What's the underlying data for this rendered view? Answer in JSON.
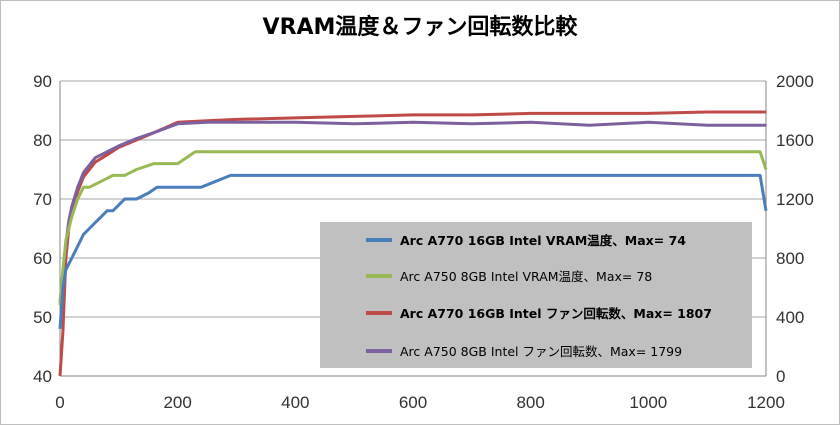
{
  "chart_data": {
    "type": "line",
    "title": "VRAM温度＆ファン回転数比較",
    "xlabel": "",
    "ylabel": "",
    "xlim": [
      0,
      1200
    ],
    "ylim_left": [
      40,
      90
    ],
    "ylim_right": [
      0,
      2000
    ],
    "x_ticks": [
      "0",
      "200",
      "400",
      "600",
      "800",
      "1000",
      "1200"
    ],
    "y_left_ticks": [
      "40",
      "50",
      "60",
      "70",
      "80",
      "90"
    ],
    "y_right_ticks": [
      "0",
      "400",
      "800",
      "1200",
      "1600",
      "2000"
    ],
    "grid": true,
    "legend_position": "bottom-right",
    "series": [
      {
        "name": "Arc A770 16GB Intel VRAM温度、Max= 74",
        "axis": "left",
        "color": "#4a7ebb",
        "bold": true,
        "x": [
          0,
          5,
          10,
          20,
          30,
          40,
          50,
          60,
          70,
          80,
          90,
          100,
          110,
          130,
          150,
          165,
          200,
          240,
          290,
          300,
          600,
          1000,
          1190,
          1200
        ],
        "y": [
          48,
          55,
          58,
          60,
          62,
          64,
          65,
          66,
          67,
          68,
          68,
          69,
          70,
          70,
          71,
          72,
          72,
          72,
          74,
          74,
          74,
          74,
          74,
          68
        ]
      },
      {
        "name": "Arc A750 8GB Intel VRAM温度、Max= 78",
        "axis": "left",
        "color": "#98b954",
        "bold": false,
        "x": [
          0,
          5,
          10,
          20,
          30,
          40,
          50,
          70,
          90,
          110,
          130,
          160,
          200,
          230,
          300,
          600,
          900,
          1190,
          1200
        ],
        "y": [
          52,
          58,
          63,
          67,
          70,
          72,
          72,
          73,
          74,
          74,
          75,
          76,
          76,
          78,
          78,
          78,
          78,
          78,
          75
        ]
      },
      {
        "name": "Arc A770 16GB Intel ファン回転数、Max= 1807",
        "axis": "right",
        "color": "#be4b48",
        "bold": true,
        "x": [
          0,
          5,
          10,
          15,
          20,
          30,
          40,
          60,
          80,
          100,
          130,
          160,
          200,
          250,
          300,
          400,
          500,
          600,
          700,
          800,
          900,
          1000,
          1100,
          1200
        ],
        "y": [
          0,
          300,
          800,
          1000,
          1100,
          1250,
          1350,
          1450,
          1500,
          1550,
          1600,
          1650,
          1720,
          1730,
          1740,
          1750,
          1760,
          1770,
          1770,
          1780,
          1780,
          1780,
          1790,
          1790
        ]
      },
      {
        "name": "Arc A750 8GB Intel ファン回転数、Max= 1799",
        "axis": "right",
        "color": "#7d60a0",
        "bold": false,
        "x": [
          0,
          5,
          10,
          15,
          20,
          30,
          40,
          60,
          80,
          100,
          130,
          160,
          200,
          250,
          300,
          400,
          500,
          600,
          700,
          800,
          900,
          1000,
          1100,
          1200
        ],
        "y": [
          500,
          700,
          900,
          1050,
          1150,
          1280,
          1380,
          1480,
          1520,
          1560,
          1610,
          1650,
          1710,
          1720,
          1720,
          1720,
          1710,
          1720,
          1710,
          1720,
          1700,
          1720,
          1700,
          1700
        ]
      }
    ]
  }
}
